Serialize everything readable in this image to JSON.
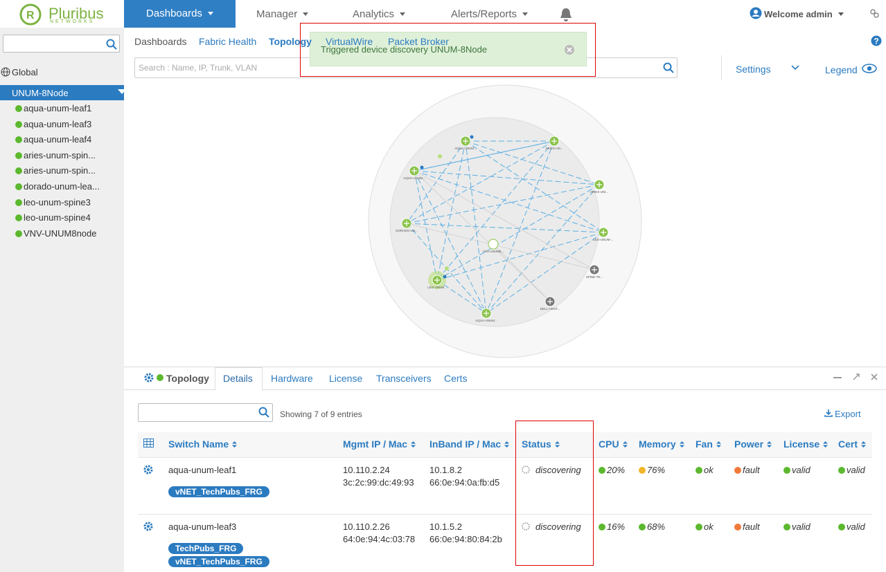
{
  "header": {
    "logo": "Pluribus",
    "logo_sub": "NETWORKS",
    "nav": [
      "Dashboards",
      "Manager",
      "Analytics",
      "Alerts/Reports"
    ],
    "user": "Welcome admin"
  },
  "sidebar": {
    "global": "Global",
    "fabric": "UNUM-8Node",
    "switches": [
      "aqua-unum-leaf1",
      "aqua-unum-leaf3",
      "aqua-unum-leaf4",
      "aries-unum-spin...",
      "aries-unum-spin...",
      "dorado-unum-lea...",
      "leo-unum-spine3",
      "leo-unum-spine4",
      "VNV-UNUM8node"
    ]
  },
  "subtabs": [
    "Dashboards",
    "Fabric Health",
    "Topology",
    "VirtualWire",
    "Packet Broker"
  ],
  "toast": "Triggered device discovery UNUM-8Node",
  "search_placeholder": "Search : Name, IP, Trunk, VLAN",
  "settings": "Settings",
  "legend": "Legend",
  "topology": {
    "nodes": [
      "AQUA-UNUM...",
      "ARIES-UN...",
      "AQUA-UNUM...",
      "ARIES-UNI...",
      "DORADO-UN...",
      "LEO-UNUM-...",
      "VNV-UNUM8...",
      "SPINE-TE...",
      "LEO-UNUM...",
      "DELL-HOST...",
      "AQUA-UNUM..."
    ]
  },
  "panel": {
    "tabs": [
      "Topology",
      "Details",
      "Hardware",
      "License",
      "Transceivers",
      "Certs"
    ],
    "showing": "Showing 7 of 9 entries",
    "export": "Export"
  },
  "table": {
    "headers": [
      "Switch Name",
      "Mgmt IP / Mac",
      "InBand IP / Mac",
      "Status",
      "CPU",
      "Memory",
      "Fan",
      "Power",
      "License",
      "Cert"
    ],
    "rows": [
      {
        "name": "aqua-unum-leaf1",
        "tags": [
          "vNET_TechPubs_FRG"
        ],
        "mgmt_ip": "10.110.2.24",
        "mgmt_mac": "3c:2c:99:dc:49:93",
        "inband_ip": "10.1.8.2",
        "inband_mac": "66:0e:94:0a:fb:d5",
        "status": "discovering",
        "cpu": "20%",
        "memory": "76%",
        "fan": "ok",
        "power": "fault",
        "license": "valid",
        "cert": "valid"
      },
      {
        "name": "aqua-unum-leaf3",
        "tags": [
          "TechPubs_FRG",
          "vNET_TechPubs_FRG"
        ],
        "mgmt_ip": "10.110.2.26",
        "mgmt_mac": "64:0e:94:4c:03:78",
        "inband_ip": "10.1.5.2",
        "inband_mac": "66:0e:94:80:84:2b",
        "status": "discovering",
        "cpu": "16%",
        "memory": "68%",
        "fan": "ok",
        "power": "fault",
        "license": "valid",
        "cert": "valid"
      }
    ]
  }
}
